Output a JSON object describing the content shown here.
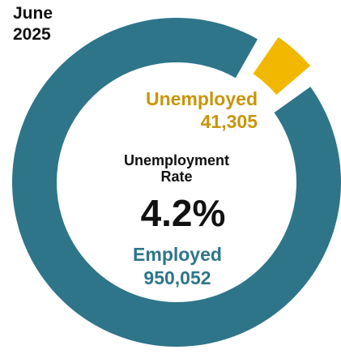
{
  "period": {
    "month": "June",
    "year": "2025"
  },
  "chart_data": {
    "type": "pie",
    "variant": "donut",
    "categories": [
      "Unemployed",
      "Employed"
    ],
    "values": [
      41305,
      950052
    ],
    "value_labels": [
      "41,305",
      "950,052"
    ],
    "colors": [
      "#F2B800",
      "#2E758A"
    ],
    "exploded": "Unemployed",
    "center_label": "Unemployment Rate",
    "center_value": "4.2%",
    "label_colors": [
      "#C8950A",
      "#2E758A"
    ]
  }
}
